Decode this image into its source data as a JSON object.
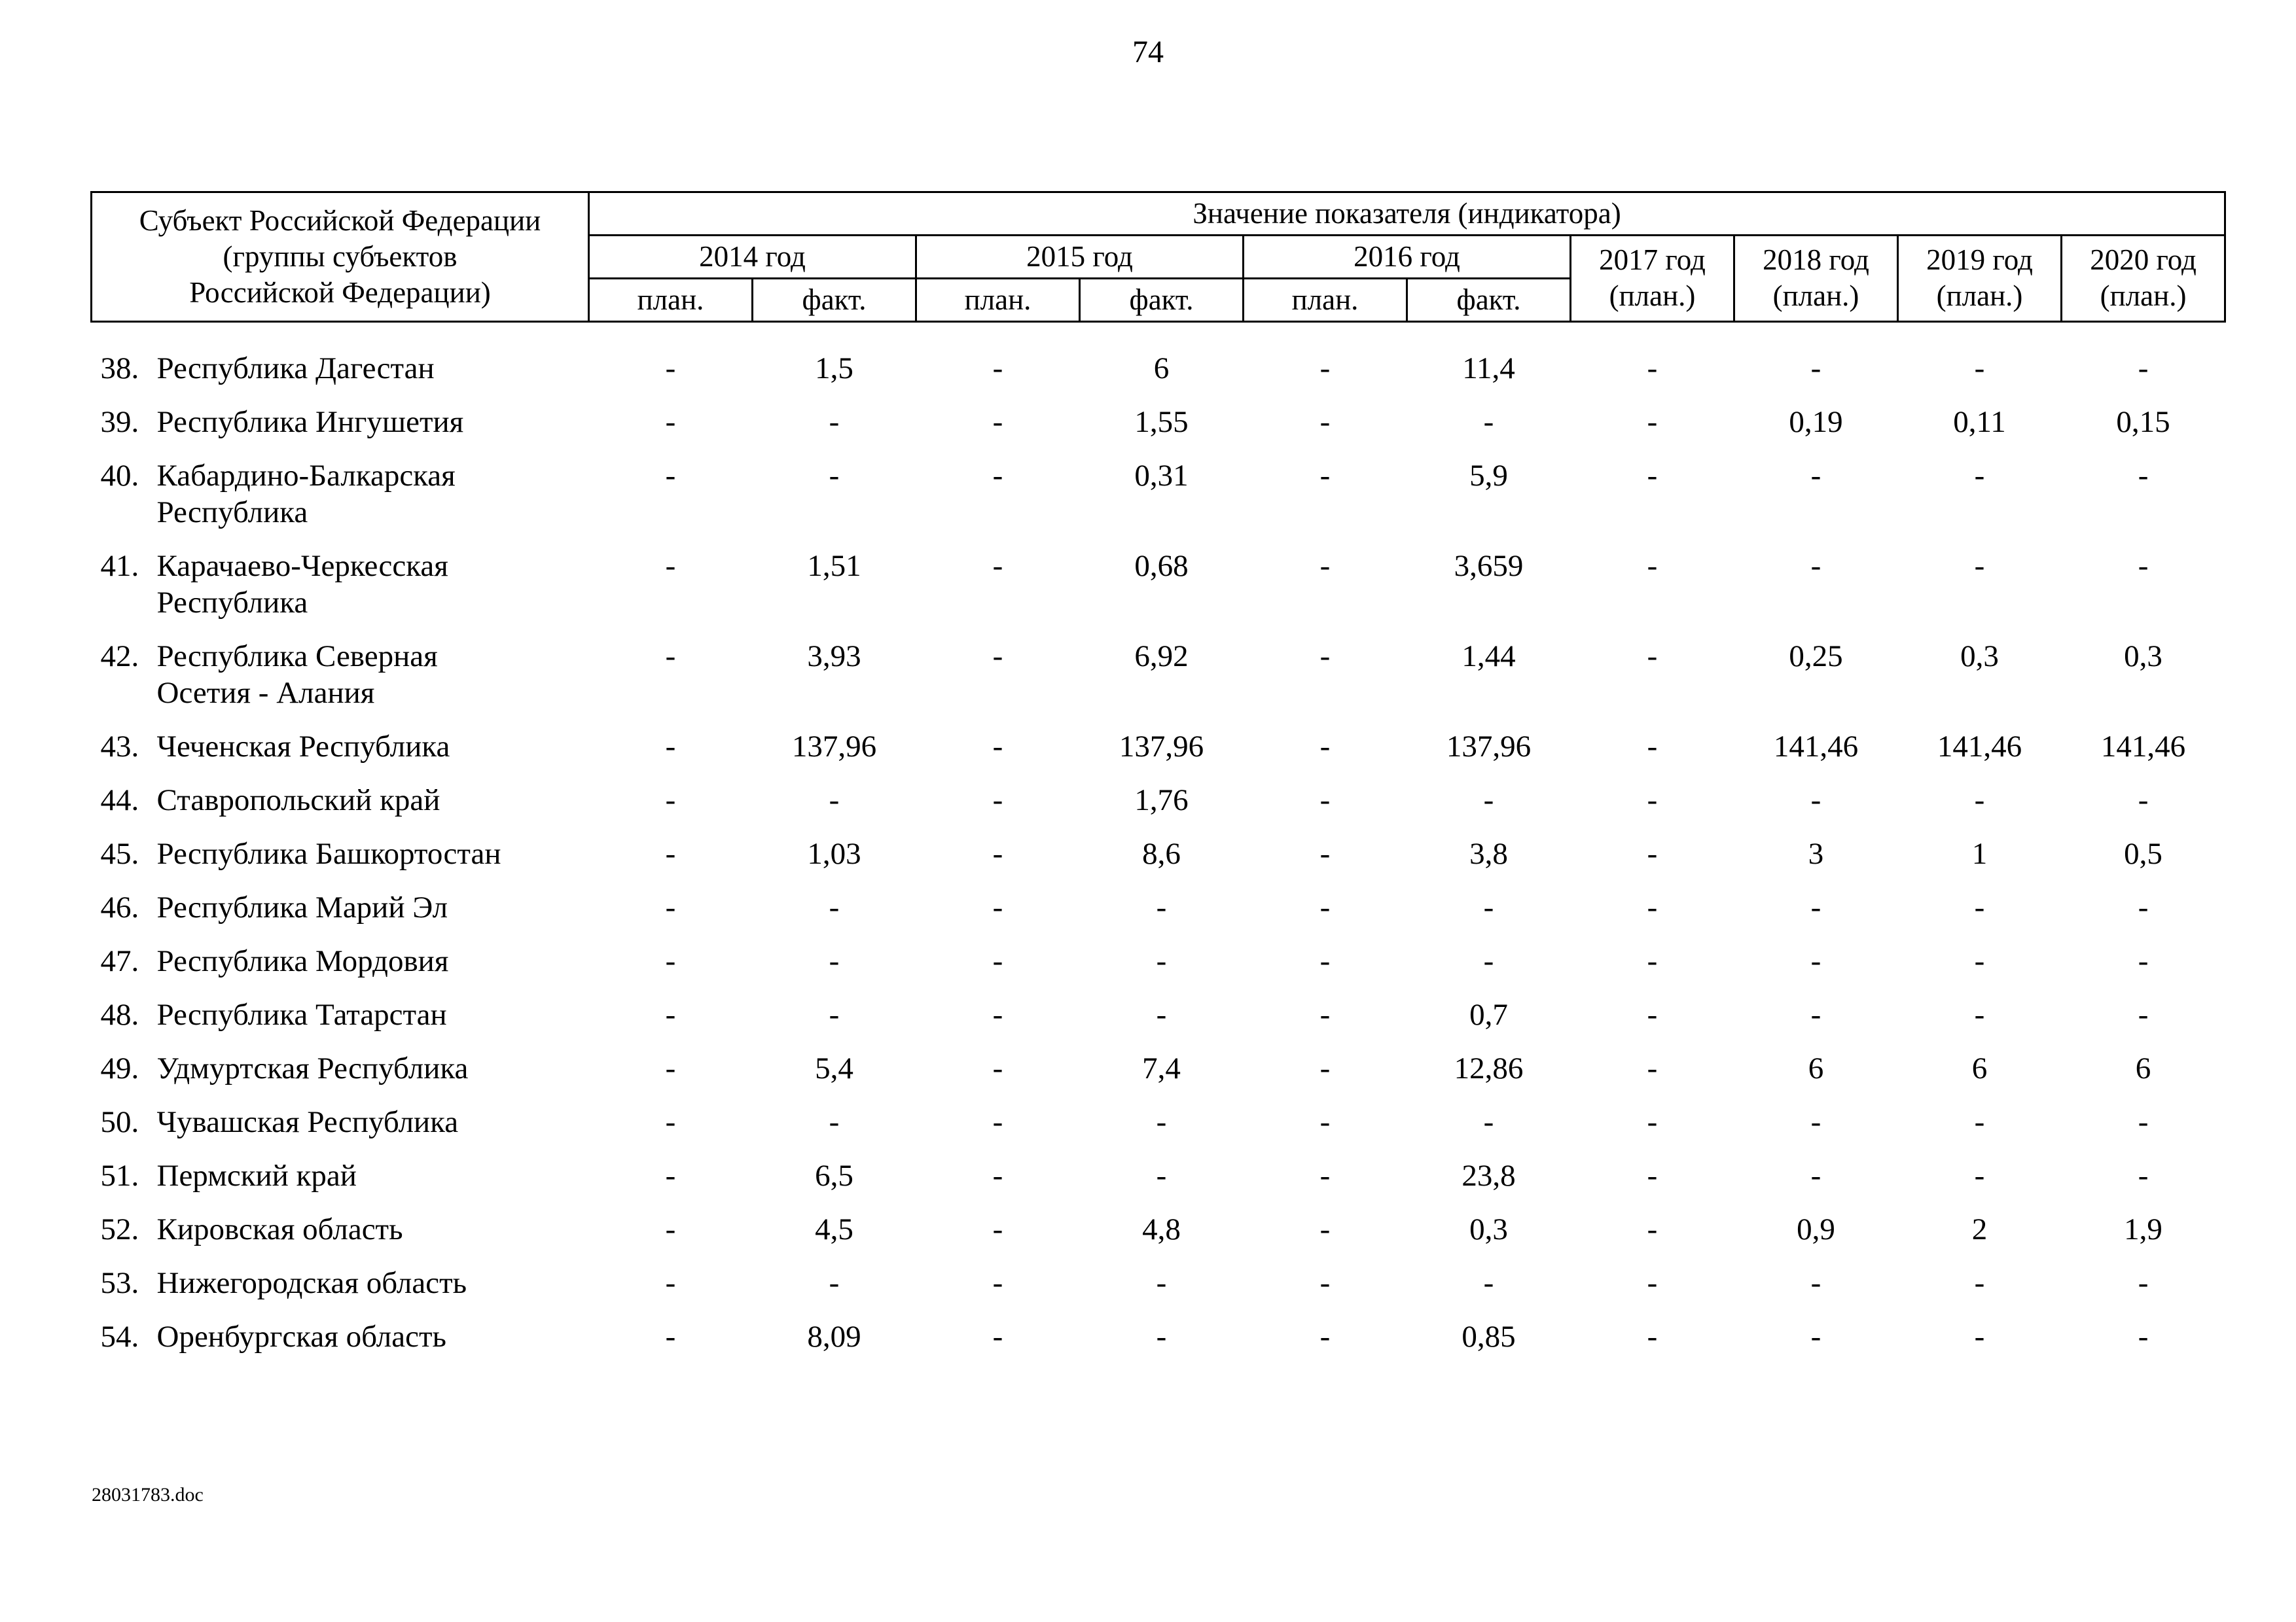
{
  "page": {
    "number": "74",
    "footer": "28031783.doc"
  },
  "table": {
    "header": {
      "subject": "Субъект Российской Федерации\n(группы субъектов\nРоссийской Федерации)",
      "indicator_title": "Значение показателя (индикатора)",
      "year_groups": [
        {
          "label": "2014 год",
          "sub": [
            "план.",
            "факт."
          ]
        },
        {
          "label": "2015 год",
          "sub": [
            "план.",
            "факт."
          ]
        },
        {
          "label": "2016 год",
          "sub": [
            "план.",
            "факт."
          ]
        }
      ],
      "plan_years": [
        "2017 год\n(план.)",
        "2018 год\n(план.)",
        "2019 год\n(план.)",
        "2020 год\n(план.)"
      ]
    },
    "rows": [
      {
        "num": "38.",
        "name": "Республика Дагестан",
        "values": [
          "-",
          "1,5",
          "-",
          "6",
          "-",
          "11,4",
          "-",
          "-",
          "-",
          "-"
        ]
      },
      {
        "num": "39.",
        "name": "Республика Ингушетия",
        "values": [
          "-",
          "-",
          "-",
          "1,55",
          "-",
          "-",
          "-",
          "0,19",
          "0,11",
          "0,15"
        ]
      },
      {
        "num": "40.",
        "name": "Кабардино-Балкарская\nРеспублика",
        "values": [
          "-",
          "-",
          "-",
          "0,31",
          "-",
          "5,9",
          "-",
          "-",
          "-",
          "-"
        ]
      },
      {
        "num": "41.",
        "name": "Карачаево-Черкесская\nРеспублика",
        "values": [
          "-",
          "1,51",
          "-",
          "0,68",
          "-",
          "3,659",
          "-",
          "-",
          "-",
          "-"
        ]
      },
      {
        "num": "42.",
        "name": "Республика Северная\nОсетия - Алания",
        "values": [
          "-",
          "3,93",
          "-",
          "6,92",
          "-",
          "1,44",
          "-",
          "0,25",
          "0,3",
          "0,3"
        ]
      },
      {
        "num": "43.",
        "name": "Чеченская Республика",
        "values": [
          "-",
          "137,96",
          "-",
          "137,96",
          "-",
          "137,96",
          "-",
          "141,46",
          "141,46",
          "141,46"
        ]
      },
      {
        "num": "44.",
        "name": "Ставропольский край",
        "values": [
          "-",
          "-",
          "-",
          "1,76",
          "-",
          "-",
          "-",
          "-",
          "-",
          "-"
        ]
      },
      {
        "num": "45.",
        "name": "Республика Башкортостан",
        "values": [
          "-",
          "1,03",
          "-",
          "8,6",
          "-",
          "3,8",
          "-",
          "3",
          "1",
          "0,5"
        ]
      },
      {
        "num": "46.",
        "name": "Республика Марий Эл",
        "values": [
          "-",
          "-",
          "-",
          "-",
          "-",
          "-",
          "-",
          "-",
          "-",
          "-"
        ]
      },
      {
        "num": "47.",
        "name": "Республика Мордовия",
        "values": [
          "-",
          "-",
          "-",
          "-",
          "-",
          "-",
          "-",
          "-",
          "-",
          "-"
        ]
      },
      {
        "num": "48.",
        "name": "Республика Татарстан",
        "values": [
          "-",
          "-",
          "-",
          "-",
          "-",
          "0,7",
          "-",
          "-",
          "-",
          "-"
        ]
      },
      {
        "num": "49.",
        "name": "Удмуртская Республика",
        "values": [
          "-",
          "5,4",
          "-",
          "7,4",
          "-",
          "12,86",
          "-",
          "6",
          "6",
          "6"
        ]
      },
      {
        "num": "50.",
        "name": "Чувашская Республика",
        "values": [
          "-",
          "-",
          "-",
          "-",
          "-",
          "-",
          "-",
          "-",
          "-",
          "-"
        ]
      },
      {
        "num": "51.",
        "name": "Пермский край",
        "values": [
          "-",
          "6,5",
          "-",
          "-",
          "-",
          "23,8",
          "-",
          "-",
          "-",
          "-"
        ]
      },
      {
        "num": "52.",
        "name": "Кировская область",
        "values": [
          "-",
          "4,5",
          "-",
          "4,8",
          "-",
          "0,3",
          "-",
          "0,9",
          "2",
          "1,9"
        ]
      },
      {
        "num": "53.",
        "name": "Нижегородская область",
        "values": [
          "-",
          "-",
          "-",
          "-",
          "-",
          "-",
          "-",
          "-",
          "-",
          "-"
        ]
      },
      {
        "num": "54.",
        "name": "Оренбургская область",
        "values": [
          "-",
          "8,09",
          "-",
          "-",
          "-",
          "0,85",
          "-",
          "-",
          "-",
          "-"
        ]
      }
    ]
  }
}
